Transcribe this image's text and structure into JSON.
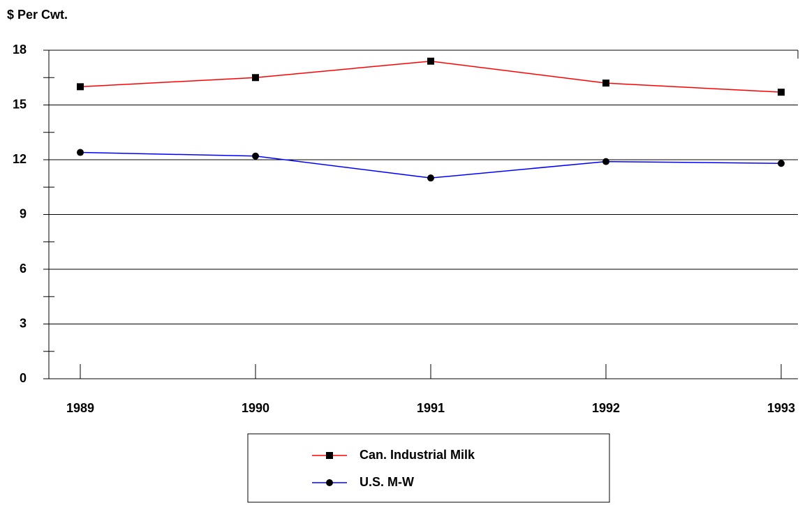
{
  "chart_data": {
    "type": "line",
    "y_label": "$ Per Cwt.",
    "categories": [
      "1989",
      "1990",
      "1991",
      "1992",
      "1993"
    ],
    "series": [
      {
        "name": "Can. Industrial Milk",
        "color": "#ff0000",
        "marker": "square",
        "values": [
          16.0,
          16.5,
          17.4,
          16.2,
          15.7
        ]
      },
      {
        "name": "U.S. M-W",
        "color": "#0000ff",
        "marker": "circle",
        "values": [
          12.4,
          12.2,
          11.0,
          11.9,
          11.8
        ]
      }
    ],
    "ylim": [
      0,
      18
    ],
    "yticks": [
      0,
      3,
      6,
      9,
      12,
      15,
      18
    ],
    "minor_yticks": [
      1.5,
      4.5,
      7.5,
      10.5,
      13.5,
      16.5
    ],
    "grid": true,
    "legend": "bottom"
  }
}
